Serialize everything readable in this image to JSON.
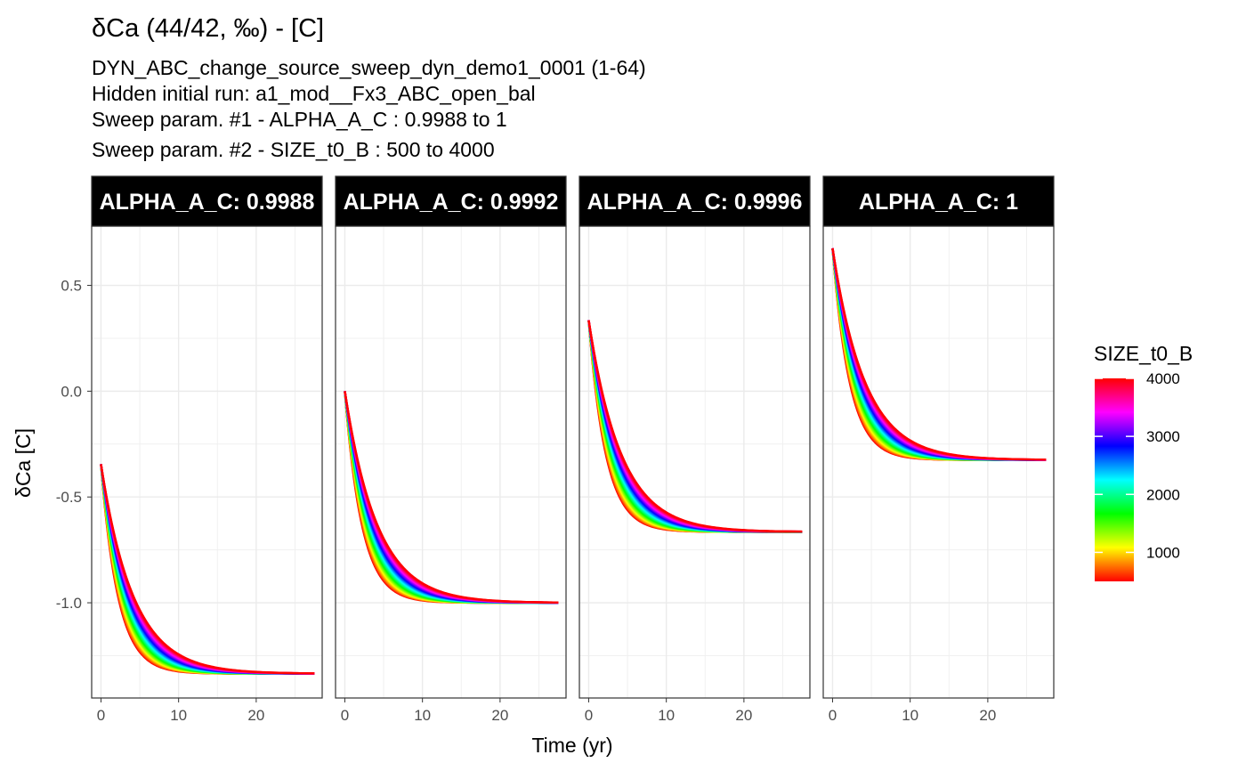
{
  "chart_data": {
    "type": "line",
    "title": "δCa (44/42, ‰) - [C]",
    "subtitle_lines": [
      "DYN_ABC_change_source_sweep_dyn_demo1_0001 (1-64)",
      "Hidden initial run: a1_mod__Fx3_ABC_open_bal",
      "Sweep param. #1 -  ALPHA_A_C :  0.9988 to 1",
      "Sweep param. #2 -  SIZE_t0_B :  500 to 4000"
    ],
    "xlabel": "Time (yr)",
    "ylabel": "δCa [C]",
    "xlim": [
      -1.2,
      28.5
    ],
    "ylim": [
      -1.45,
      0.78
    ],
    "x_ticks": [
      0,
      10,
      20
    ],
    "x_tick_labels": [
      "0",
      "10",
      "20"
    ],
    "y_ticks": [
      0.5,
      0.0,
      -0.5,
      -1.0
    ],
    "y_tick_labels": [
      "0.5",
      "0.0",
      "-0.5",
      "-1.0"
    ],
    "grid": true,
    "t_end": 27.5,
    "color_scale": {
      "title": "SIZE_t0_B",
      "min": 500,
      "max": 4000,
      "breaks": [
        1000,
        2000,
        3000,
        4000
      ],
      "break_labels": [
        "1000",
        "2000",
        "3000",
        "4000"
      ],
      "gradient": [
        "#FF0000",
        "#FFFF00",
        "#00FF00",
        "#00FFFF",
        "#0000FF",
        "#FF00FF",
        "#FF0000"
      ]
    },
    "sweep_values": [
      500,
      1000,
      1500,
      2000,
      2500,
      3000,
      3500,
      4000
    ],
    "panels": [
      {
        "strip": "ALPHA_A_C: 0.9988",
        "y0": -0.345,
        "y_end": -1.335,
        "tau_min": 2.2,
        "tau_max": 4.2
      },
      {
        "strip": "ALPHA_A_C: 0.9992",
        "y0": 0.0,
        "y_end": -1.0,
        "tau_min": 2.2,
        "tau_max": 4.2
      },
      {
        "strip": "ALPHA_A_C: 0.9996",
        "y0": 0.335,
        "y_end": -0.665,
        "tau_min": 2.2,
        "tau_max": 4.2
      },
      {
        "strip": "ALPHA_A_C: 1",
        "y0": 0.675,
        "y_end": -0.325,
        "tau_min": 2.2,
        "tau_max": 4.2
      }
    ]
  }
}
